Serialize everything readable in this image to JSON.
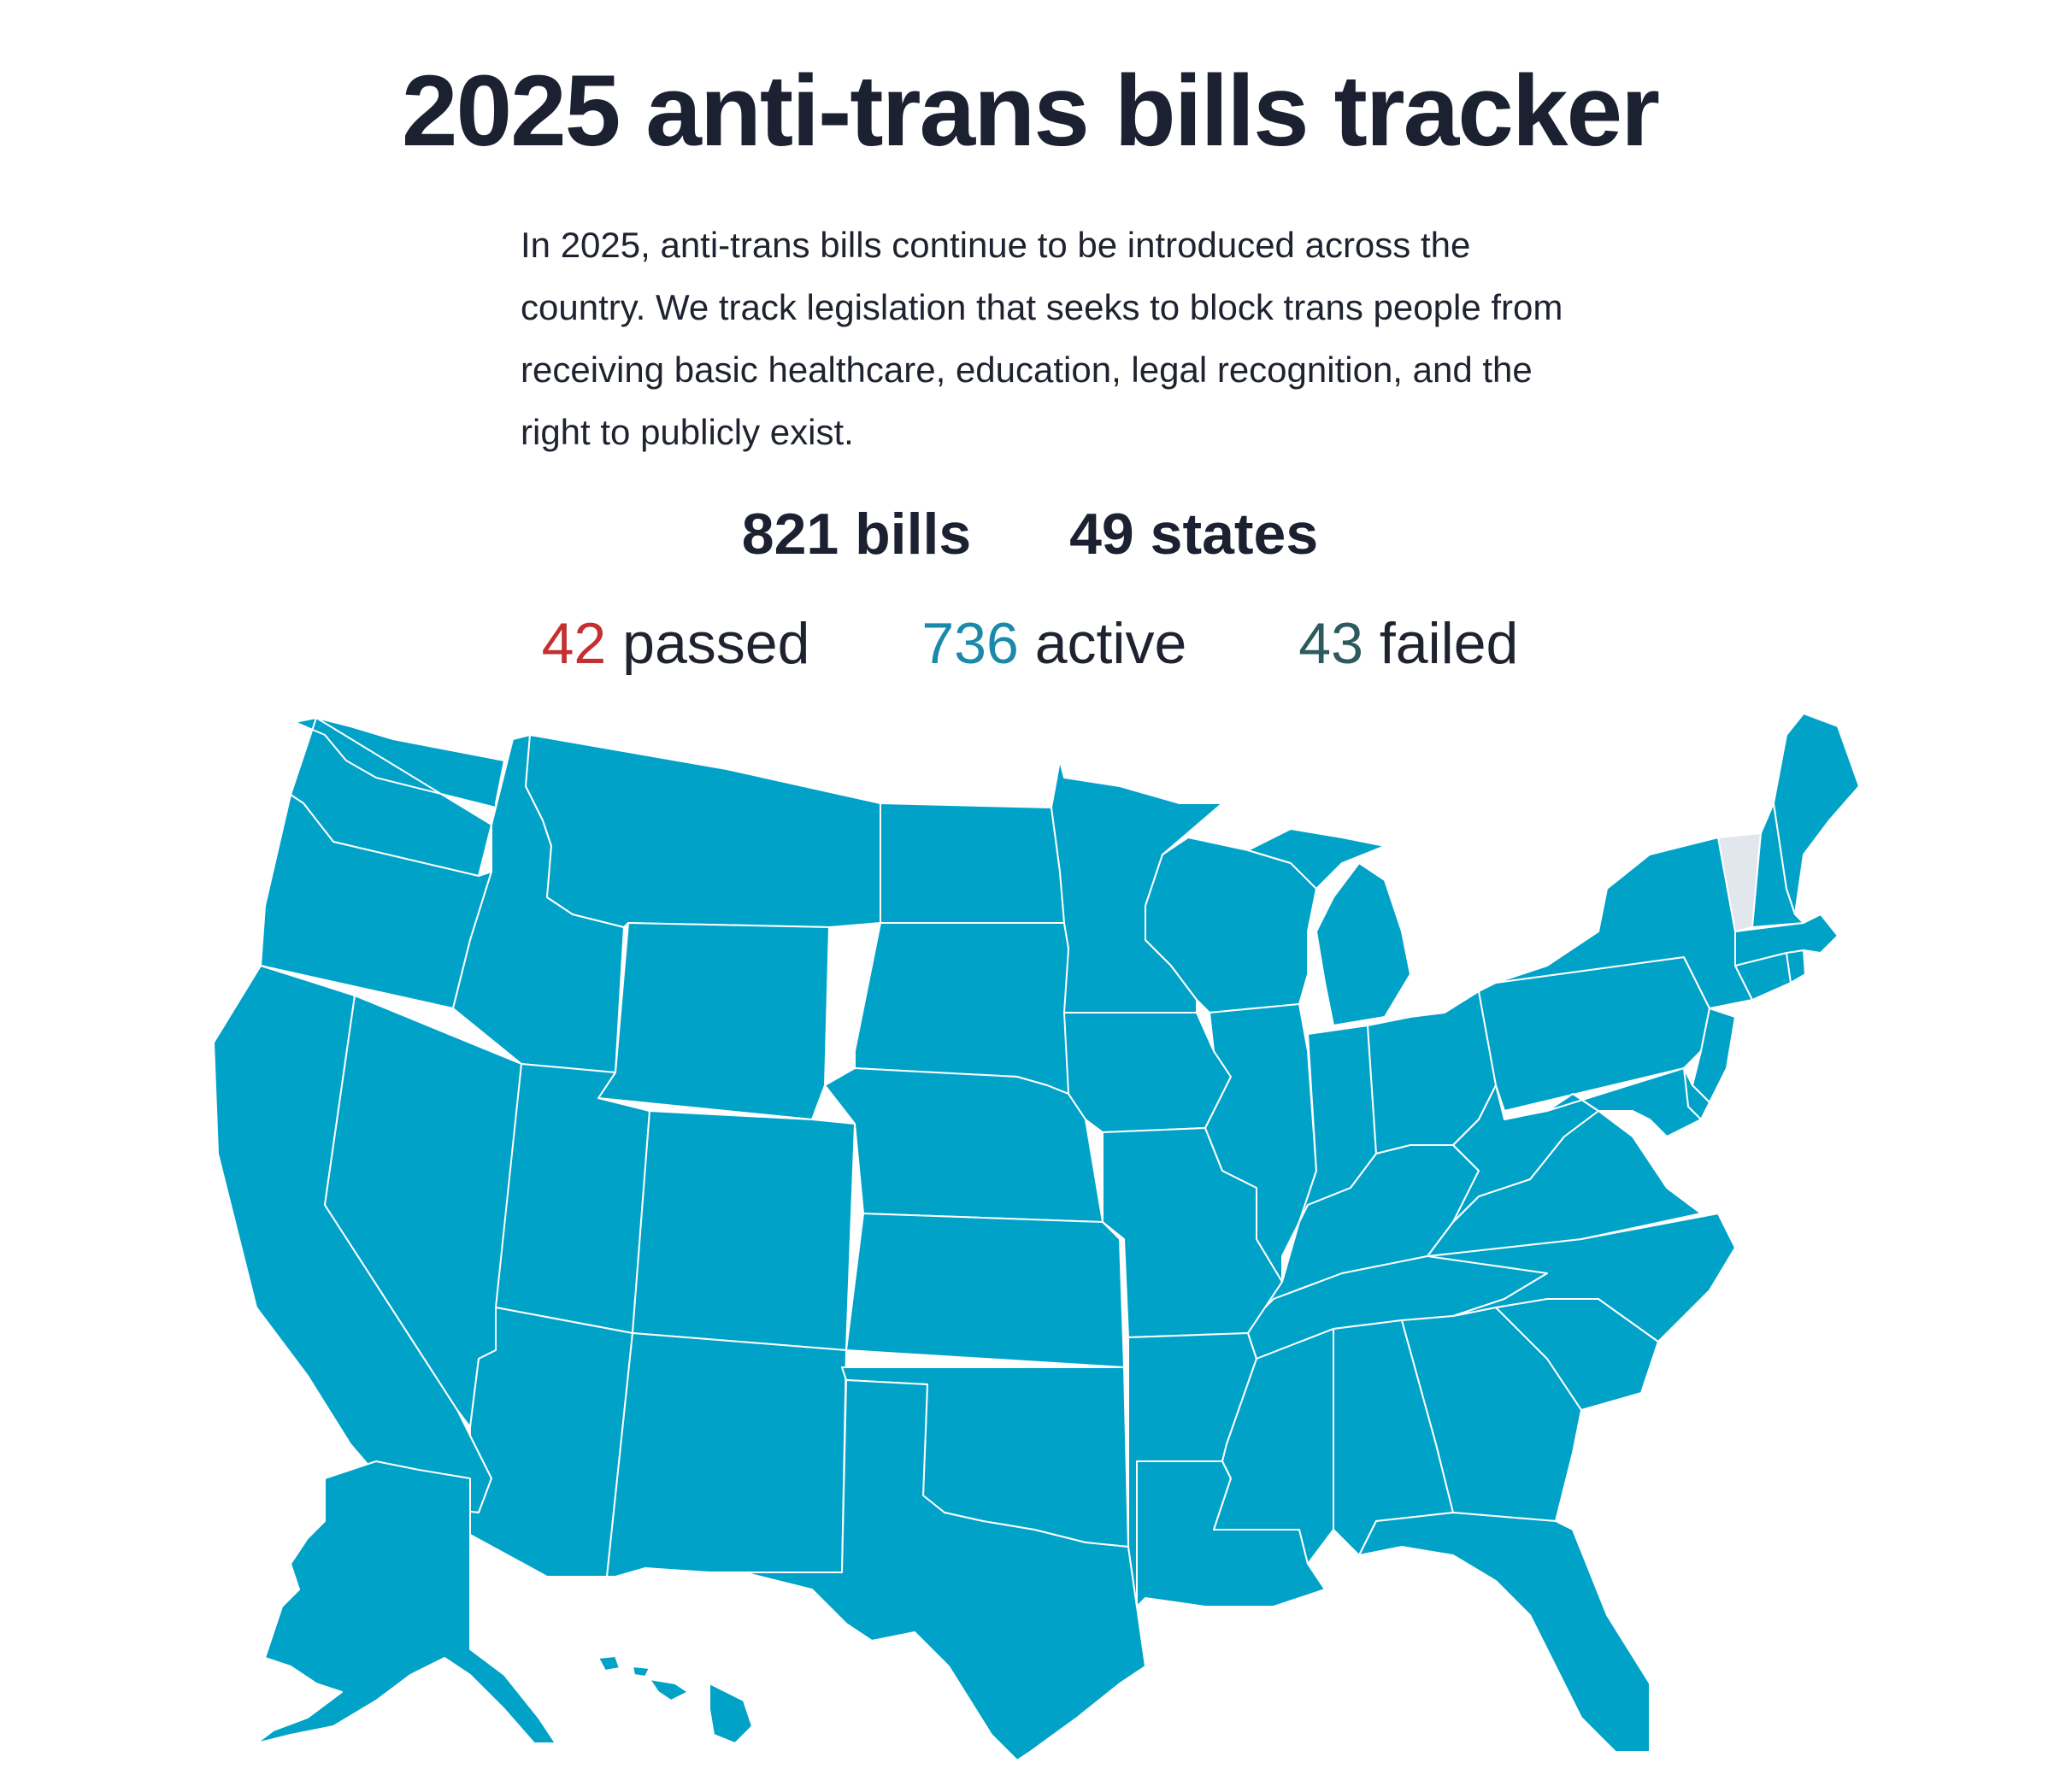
{
  "header": {
    "title": "2025 anti-trans bills tracker"
  },
  "intro": {
    "text": "In 2025, anti-trans bills continue to be introduced across the country. We track legislation that seeks to block trans people from receiving basic healthcare, education, legal recognition, and the right to publicly exist."
  },
  "totals": {
    "bills": "821 bills",
    "states": "49 states"
  },
  "status": {
    "passed": {
      "count": "42",
      "label": "passed",
      "color": "#c62f31"
    },
    "active": {
      "count": "736",
      "label": "active",
      "color": "#1b8aa8"
    },
    "failed": {
      "count": "43",
      "label": "failed",
      "color": "#2d5a5c"
    }
  },
  "map": {
    "active_fill": "#01a2c8",
    "no_bills_fill": "#e2e7ee",
    "states_with_bills": [
      "WA",
      "OR",
      "CA",
      "NV",
      "ID",
      "MT",
      "WY",
      "UT",
      "AZ",
      "CO",
      "NM",
      "ND",
      "SD",
      "NE",
      "KS",
      "OK",
      "TX",
      "MN",
      "IA",
      "MO",
      "AR",
      "LA",
      "WI",
      "IL",
      "MI",
      "IN",
      "OH",
      "KY",
      "TN",
      "MS",
      "AL",
      "GA",
      "FL",
      "SC",
      "NC",
      "VA",
      "WV",
      "PA",
      "NY",
      "NJ",
      "DE",
      "MD",
      "CT",
      "RI",
      "MA",
      "NH",
      "ME",
      "AK",
      "HI"
    ],
    "states_without_bills": [
      "VT"
    ]
  }
}
